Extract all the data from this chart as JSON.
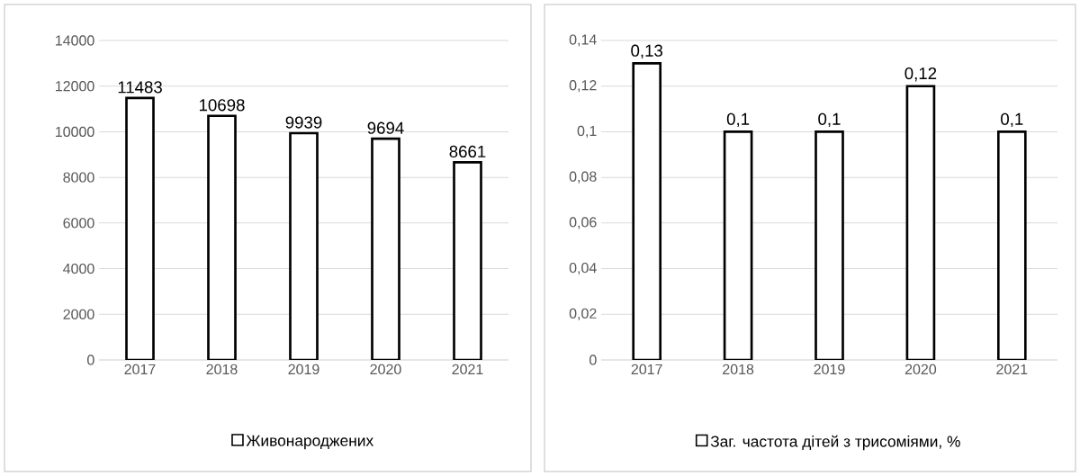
{
  "chart_data": [
    {
      "type": "bar",
      "categories": [
        "2017",
        "2018",
        "2019",
        "2020",
        "2021"
      ],
      "series": [
        {
          "name": "Живонароджених",
          "color": "#ffffff",
          "values": [
            11483,
            10698,
            9939,
            9694,
            8661
          ]
        }
      ],
      "ylim": [
        0,
        14000
      ],
      "yticks": [
        0,
        2000,
        4000,
        6000,
        8000,
        10000,
        12000,
        14000
      ],
      "grid": "y",
      "legend": "bottom",
      "data_labels": true
    },
    {
      "type": "bar",
      "categories": [
        "2017",
        "2018",
        "2019",
        "2020",
        "2021"
      ],
      "series": [
        {
          "name": "Заг. частота дітей з трисоміями, %",
          "color": "#ffffff",
          "values": [
            0.13,
            0.1,
            0.1,
            0.12,
            0.1
          ],
          "value_labels": [
            "0,13",
            "0,1",
            "0,1",
            "0,12",
            "0,1"
          ]
        }
      ],
      "ylim": [
        0,
        0.14
      ],
      "yticks": [
        0,
        {
          "value": 0.02,
          "label": "0,02"
        },
        {
          "value": 0.04,
          "label": "0,04"
        },
        {
          "value": 0.06,
          "label": "0,06"
        },
        {
          "value": 0.08,
          "label": "0,08"
        },
        {
          "value": 0.1,
          "label": "0,1"
        },
        {
          "value": 0.12,
          "label": "0,12"
        },
        {
          "value": 0.14,
          "label": "0,14"
        }
      ],
      "grid": "y",
      "legend": "bottom"
    }
  ]
}
